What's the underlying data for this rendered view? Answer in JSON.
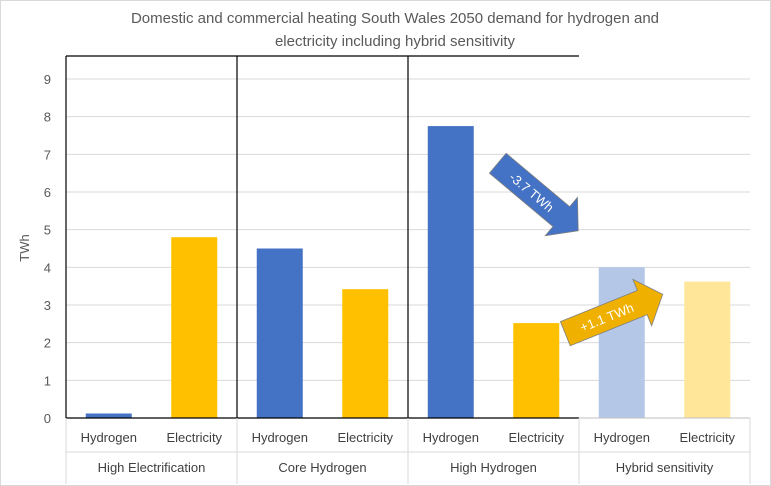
{
  "chart_data": {
    "type": "bar",
    "title_line1": "Domestic and commercial heating South Wales 2050 demand for hydrogen and",
    "title_line2": "electricity including hybrid sensitivity",
    "ylabel": "TWh",
    "ylim": [
      0,
      9
    ],
    "yticks": [
      "0",
      "1",
      "2",
      "3",
      "4",
      "5",
      "6",
      "7",
      "8",
      "9"
    ],
    "grid": true,
    "groups": [
      {
        "name": "High Electrification",
        "bars": [
          {
            "label": "Hydrogen",
            "value": 0.12,
            "color": "#4472c4"
          },
          {
            "label": "Electricity",
            "value": 4.8,
            "color": "#ffc000"
          }
        ]
      },
      {
        "name": "Core Hydrogen",
        "bars": [
          {
            "label": "Hydrogen",
            "value": 4.5,
            "color": "#4472c4"
          },
          {
            "label": "Electricity",
            "value": 3.42,
            "color": "#ffc000"
          }
        ]
      },
      {
        "name": "High Hydrogen",
        "bars": [
          {
            "label": "Hydrogen",
            "value": 7.75,
            "color": "#4472c4"
          },
          {
            "label": "Electricity",
            "value": 2.52,
            "color": "#ffc000"
          }
        ]
      },
      {
        "name": "Hybrid sensitivity",
        "bars": [
          {
            "label": "Hydrogen",
            "value": 4.0,
            "color": "#b4c7e7"
          },
          {
            "label": "Electricity",
            "value": 3.62,
            "color": "#ffe699"
          }
        ]
      }
    ],
    "annotations": [
      {
        "text": "-3.7 TWh",
        "color": "#4472c4",
        "direction": "down-right"
      },
      {
        "text": "+1.1 TWh",
        "color": "#f0b000",
        "direction": "up-right"
      }
    ]
  }
}
